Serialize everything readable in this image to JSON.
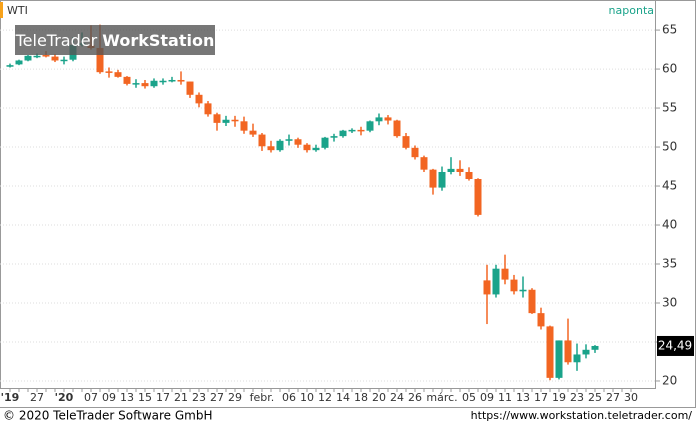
{
  "chart_data": {
    "type": "candlestick",
    "title": "WTI",
    "period": "naponta",
    "watermark": {
      "brand": "TeleTrader",
      "product": "WorkStation"
    },
    "footer": {
      "copyright": "© 2020 TeleTrader Software GmbH",
      "url": "https://www.workstation.teletrader.com/"
    },
    "up_color": "#1aa38a",
    "down_color": "#f26522",
    "categories": [
      "'19",
      null,
      null,
      "27",
      null,
      null,
      "'20",
      null,
      null,
      "07",
      null,
      "09",
      null,
      "13",
      null,
      "15",
      null,
      "17",
      null,
      "21",
      null,
      "23",
      null,
      "27",
      null,
      "29",
      null,
      null,
      "febr.",
      null,
      null,
      "06",
      null,
      "10",
      null,
      "12",
      null,
      "14",
      null,
      "18",
      null,
      "20",
      null,
      "24",
      null,
      "26",
      null,
      null,
      "márc.",
      null,
      null,
      "05",
      null,
      "09",
      null,
      "11",
      null,
      "13",
      null,
      "17",
      null,
      "19",
      null,
      "23",
      null,
      "25",
      null,
      "27",
      null,
      "30"
    ],
    "open": [
      60.3,
      60.6,
      61.1,
      61.7,
      61.8,
      61.6,
      61.1,
      61.2,
      63.2,
      63.1,
      62.7,
      59.7,
      59.6,
      59.0,
      58.1,
      58.2,
      57.8,
      58.5,
      58.5,
      58.6,
      58.4,
      56.7,
      55.6,
      54.2,
      53.1,
      53.5,
      53.3,
      52.1,
      51.6,
      50.1,
      49.6,
      50.8,
      51.0,
      50.3,
      49.6,
      49.9,
      51.2,
      51.4,
      52.1,
      52.2,
      52.1,
      53.3,
      53.8,
      53.4,
      51.4,
      49.9,
      48.7,
      47.1,
      44.8,
      46.8,
      47.2,
      46.8,
      45.9,
      32.9,
      31.1,
      34.4,
      33.0,
      31.5,
      31.7,
      28.7,
      27.0,
      20.4,
      25.2,
      22.4,
      23.4,
      24.0,
      null,
      null,
      null,
      null
    ],
    "high": [
      60.7,
      61.2,
      61.8,
      62.0,
      62.3,
      61.9,
      61.6,
      64.1,
      64.7,
      65.6,
      65.7,
      60.2,
      59.9,
      59.1,
      58.7,
      58.6,
      58.8,
      58.8,
      59.0,
      59.7,
      58.4,
      57.0,
      55.9,
      54.4,
      54.0,
      54.0,
      53.9,
      53.0,
      51.8,
      50.8,
      51.0,
      51.6,
      51.2,
      50.5,
      50.3,
      51.3,
      51.7,
      52.2,
      52.4,
      52.6,
      53.4,
      54.3,
      54.1,
      53.5,
      51.8,
      50.2,
      48.9,
      47.2,
      47.5,
      48.7,
      48.3,
      47.4,
      46.0,
      34.9,
      34.9,
      36.2,
      33.6,
      33.4,
      31.9,
      29.4,
      27.1,
      25.2,
      28.0,
      24.8,
      24.7,
      24.6,
      null,
      null,
      null,
      null
    ],
    "low": [
      60.2,
      60.5,
      61.0,
      61.4,
      61.5,
      60.9,
      60.6,
      61.0,
      62.9,
      62.5,
      59.4,
      58.9,
      58.9,
      57.9,
      57.6,
      57.5,
      57.6,
      58.0,
      58.3,
      58.0,
      56.3,
      55.1,
      53.9,
      52.1,
      52.7,
      52.6,
      51.7,
      51.3,
      49.5,
      49.3,
      49.4,
      50.2,
      49.9,
      49.3,
      49.4,
      49.7,
      50.7,
      51.2,
      51.8,
      51.5,
      51.9,
      52.8,
      52.9,
      51.2,
      49.7,
      48.4,
      46.8,
      43.9,
      44.4,
      46.5,
      46.3,
      45.7,
      41.1,
      27.3,
      30.7,
      32.4,
      31.1,
      30.7,
      28.6,
      26.6,
      20.1,
      20.2,
      22.1,
      21.3,
      22.9,
      23.6,
      null,
      null,
      null,
      null
    ],
    "close": [
      60.5,
      61.1,
      61.7,
      61.7,
      61.7,
      61.1,
      61.2,
      63.1,
      63.3,
      62.7,
      59.6,
      59.6,
      59.0,
      58.1,
      58.2,
      57.8,
      58.5,
      58.5,
      58.6,
      58.4,
      56.7,
      55.6,
      54.2,
      53.1,
      53.5,
      53.3,
      52.1,
      51.6,
      50.1,
      49.6,
      50.8,
      51.0,
      50.3,
      49.6,
      49.9,
      51.2,
      51.4,
      52.1,
      52.2,
      52.1,
      53.3,
      53.8,
      53.4,
      51.4,
      49.9,
      48.7,
      47.1,
      44.8,
      46.8,
      47.2,
      46.8,
      45.9,
      41.3,
      31.1,
      34.4,
      33.0,
      31.5,
      31.7,
      28.7,
      27.0,
      20.4,
      25.2,
      22.4,
      23.4,
      24.0,
      24.49,
      null,
      null,
      null,
      null
    ],
    "last_price": {
      "value": 24.49,
      "label": "24,49"
    },
    "ylim": [
      19.1,
      68.6
    ],
    "yticks": [
      20,
      25,
      30,
      35,
      40,
      45,
      50,
      55,
      60,
      65
    ],
    "grid": true
  }
}
